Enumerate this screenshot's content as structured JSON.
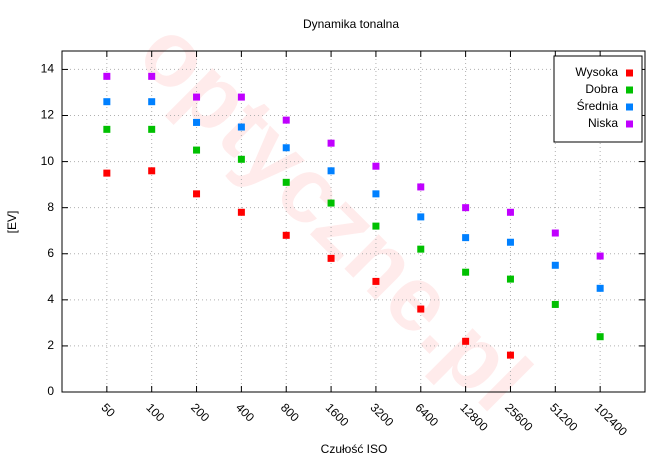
{
  "chart_data": {
    "type": "scatter",
    "title": "Dynamika tonalna",
    "xlabel": "Czułość ISO",
    "ylabel": "[EV]",
    "watermark": "optyczne.pl",
    "categories": [
      "50",
      "100",
      "200",
      "400",
      "800",
      "1600",
      "3200",
      "6400",
      "12800",
      "25600",
      "51200",
      "102400"
    ],
    "series": [
      {
        "name": "Wysoka",
        "color": "#ff0000",
        "values": [
          9.5,
          9.6,
          8.6,
          7.8,
          6.8,
          5.8,
          4.8,
          3.6,
          2.2,
          1.6,
          null,
          null
        ]
      },
      {
        "name": "Dobra",
        "color": "#00c000",
        "values": [
          11.4,
          11.4,
          10.5,
          10.1,
          9.1,
          8.2,
          7.2,
          6.2,
          5.2,
          4.9,
          3.8,
          2.4
        ]
      },
      {
        "name": "Średnia",
        "color": "#0080ff",
        "values": [
          12.6,
          12.6,
          11.7,
          11.5,
          10.6,
          9.6,
          8.6,
          7.6,
          6.7,
          6.5,
          5.5,
          4.5
        ]
      },
      {
        "name": "Niska",
        "color": "#c000ff",
        "values": [
          13.7,
          13.7,
          12.8,
          12.8,
          11.8,
          10.8,
          9.8,
          8.9,
          8.0,
          7.8,
          6.9,
          5.9
        ]
      }
    ],
    "ylim": [
      0,
      14.8
    ],
    "yticks": [
      0,
      2,
      4,
      6,
      8,
      10,
      12,
      14
    ],
    "grid": true,
    "legend": "upper right"
  }
}
